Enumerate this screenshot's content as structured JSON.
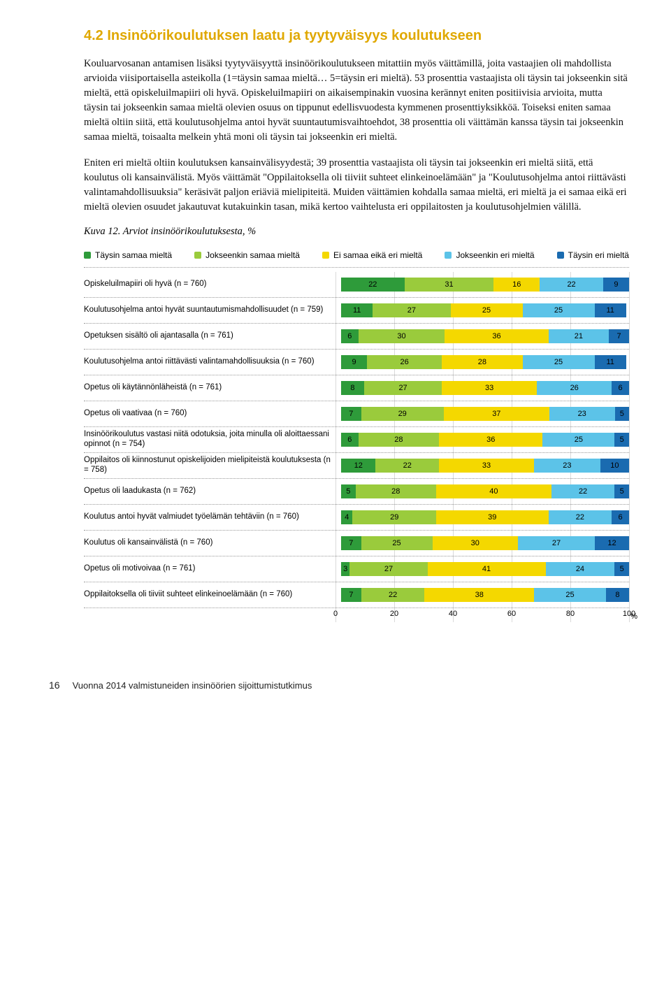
{
  "section_title": "4.2 Insinöörikoulutuksen laatu ja tyytyväisyys koulutukseen",
  "para1": "Kouluarvosanan antamisen lisäksi tyytyväisyyttä insinöörikoulutukseen mitattiin myös väittämillä, joita vastaajien oli mahdollista arvioida viisiportaisella asteikolla (1=täysin samaa mieltä… 5=täysin eri mieltä). 53 prosenttia vastaajista oli täysin tai jokseenkin sitä mieltä, että opiskeluilmapiiri oli hyvä. Opiskeluilmapiiri on aikaisempinakin vuosina kerännyt eniten positiivisia arvioita, mutta täysin tai jokseenkin samaa mieltä olevien osuus on tippunut edellisvuodesta kymmenen prosenttiyksikköä. Toiseksi eniten samaa mieltä oltiin siitä, että koulutusohjelma antoi hyvät suuntautumisvaihtoehdot, 38 prosenttia oli väittämän kanssa täysin tai jokseenkin samaa mieltä, toisaalta melkein yhtä moni oli täysin tai jokseenkin eri mieltä.",
  "para2": "Eniten eri mieltä oltiin koulutuksen kansainvälisyydestä; 39 prosenttia vastaajista oli täysin tai jokseenkin eri mieltä siitä, että koulutus oli kansainvälistä. Myös väittämät \"Oppilaitoksella oli tiiviit suhteet elinkeinoelämään\" ja \"Koulutusohjelma antoi riittävästi valintamahdollisuuksia\" keräsivät paljon eriäviä mielipiteitä. Muiden väittämien kohdalla samaa mieltä, eri mieltä ja ei samaa eikä eri mieltä olevien osuudet jakautuvat kutakuinkin tasan, mikä kertoo vaihtelusta eri oppilaitosten ja koulutusohjelmien välillä.",
  "figure_caption": "Kuva 12. Arviot insinöörikoulutuksesta, %",
  "legend": [
    {
      "label": "Täysin samaa mieltä",
      "color": "#2e9b3a"
    },
    {
      "label": "Jokseenkin samaa mieltä",
      "color": "#9acb3c"
    },
    {
      "label": "Ei samaa eikä eri mieltä",
      "color": "#f4d800"
    },
    {
      "label": "Jokseenkin eri mieltä",
      "color": "#5cc3e8"
    },
    {
      "label": "Täysin eri mieltä",
      "color": "#1a6bb0"
    }
  ],
  "chart": {
    "type": "stacked-bar-horizontal",
    "xlim": [
      0,
      100
    ],
    "xtick_step": 20,
    "xticks": [
      0,
      20,
      40,
      60,
      80,
      100
    ],
    "grid_color": "#d9d9d9",
    "background_color": "#ffffff",
    "label_fontsize": 11.5,
    "value_fontsize": 11,
    "segment_colors": [
      "#2e9b3a",
      "#9acb3c",
      "#f4d800",
      "#5cc3e8",
      "#1a6bb0"
    ],
    "rows": [
      {
        "label": "Opiskeluilmapiiri oli hyvä (n = 760)",
        "values": [
          22,
          31,
          16,
          22,
          9
        ]
      },
      {
        "label": "Koulutusohjelma antoi hyvät suuntautumismahdollisuudet (n = 759)",
        "values": [
          11,
          27,
          25,
          25,
          11
        ]
      },
      {
        "label": "Opetuksen sisältö oli ajantasalla (n = 761)",
        "values": [
          6,
          30,
          36,
          21,
          7
        ]
      },
      {
        "label": "Koulutusohjelma antoi riittävästi valintamahdollisuuksia (n = 760)",
        "values": [
          9,
          26,
          28,
          25,
          11
        ]
      },
      {
        "label": "Opetus oli käytännönläheistä (n = 761)",
        "values": [
          8,
          27,
          33,
          26,
          6
        ]
      },
      {
        "label": "Opetus oli vaativaa (n = 760)",
        "values": [
          7,
          29,
          37,
          23,
          5
        ]
      },
      {
        "label": "Insinöörikoulutus vastasi niitä odotuksia, joita minulla oli aloittaessani opinnot (n = 754)",
        "values": [
          6,
          28,
          36,
          25,
          5
        ]
      },
      {
        "label": "Oppilaitos oli kiinnostunut opiskelijoiden mielipiteistä koulutuksesta (n = 758)",
        "values": [
          12,
          22,
          33,
          23,
          10
        ]
      },
      {
        "label": "Opetus oli laadukasta (n = 762)",
        "values": [
          5,
          28,
          40,
          22,
          5
        ]
      },
      {
        "label": "Koulutus antoi hyvät valmiudet työelämän tehtäviin (n = 760)",
        "values": [
          4,
          29,
          39,
          22,
          6
        ]
      },
      {
        "label": "Koulutus oli kansainvälistä (n = 760)",
        "values": [
          7,
          25,
          30,
          27,
          12
        ]
      },
      {
        "label": "Opetus oli motivoivaa (n = 761)",
        "values": [
          3,
          27,
          41,
          24,
          5
        ]
      },
      {
        "label": "Oppilaitoksella oli tiiviit suhteet elinkeinoelämään (n = 760)",
        "values": [
          7,
          22,
          38,
          25,
          8
        ]
      }
    ],
    "pct_symbol": "%"
  },
  "footer": {
    "page_number": "16",
    "doc_title": "Vuonna 2014 valmistuneiden insinöörien sijoittumistutkimus"
  }
}
